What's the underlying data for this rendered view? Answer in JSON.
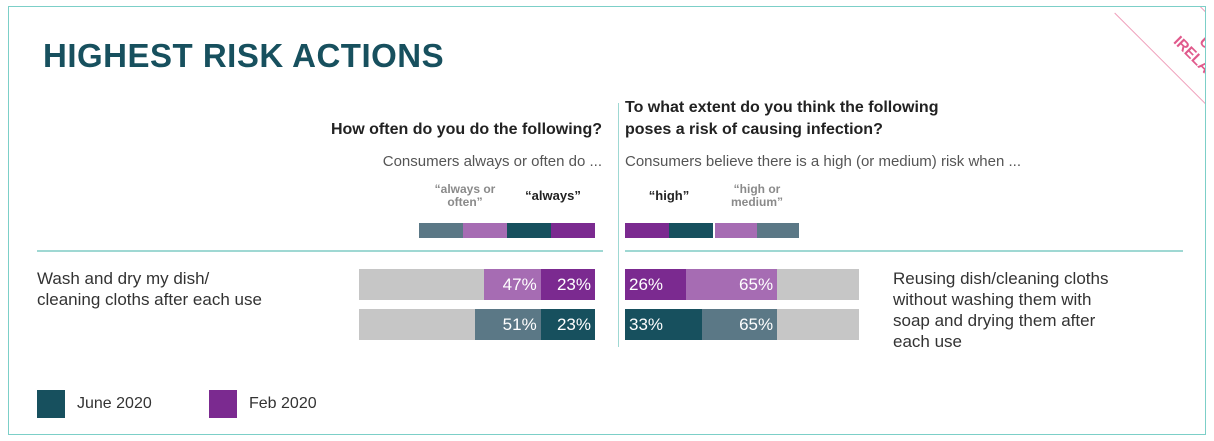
{
  "title": "HIGHEST RISK ACTIONS",
  "badge": {
    "line1": "UK /",
    "line2": "IRELAND"
  },
  "colors": {
    "title": "#17505e",
    "june2020_dark": "#17505e",
    "feb2020_dark": "#7b2a90",
    "june2020_light": "#5b7886",
    "feb2020_light": "#a66cb3",
    "bar_background": "#c6c6c6",
    "badge": "#e05a8c"
  },
  "left": {
    "question": "How often do you do the following?",
    "subtitle": "Consumers always or often do ...",
    "key_light": "“always or often”",
    "key_dark": "“always”"
  },
  "right": {
    "question_line1": "To what extent do you think the following",
    "question_line2": "poses a risk of causing infection?",
    "subtitle": "Consumers believe there is a high (or medium) risk when ...",
    "key_dark": "“high”",
    "key_light": "“high or medium”"
  },
  "chart_data": [
    {
      "type": "bar",
      "title": "How often do you do the following?",
      "subtitle": "Consumers always or often do ...",
      "category": "Wash and dry my dish/ cleaning cloths after each use",
      "series": [
        {
          "name": "Feb 2020",
          "always_or_often": 47,
          "always": 23
        },
        {
          "name": "June 2020",
          "always_or_often": 51,
          "always": 23
        }
      ],
      "ylim": [
        0,
        100
      ],
      "label_line1": "Wash and dry my dish/",
      "label_line2": "cleaning cloths after each use",
      "labels": {
        "feb_light": "47%",
        "feb_dark": "23%",
        "june_light": "51%",
        "june_dark": "23%"
      }
    },
    {
      "type": "bar",
      "title": "To what extent do you think the following poses a risk of causing infection?",
      "subtitle": "Consumers believe there is a high (or medium) risk when ...",
      "category": "Reusing dish/cleaning cloths without washing them with soap and drying them after each use",
      "series": [
        {
          "name": "Feb 2020",
          "high": 26,
          "high_or_medium": 65
        },
        {
          "name": "June 2020",
          "high": 33,
          "high_or_medium": 65
        }
      ],
      "ylim": [
        0,
        100
      ],
      "label_lines": [
        "Reusing dish/cleaning cloths",
        "without washing them with",
        "soap and drying them after",
        "each use"
      ],
      "labels": {
        "feb_dark": "26%",
        "feb_light": "65%",
        "june_dark": "33%",
        "june_light": "65%"
      }
    }
  ],
  "legend": [
    {
      "label": "June 2020",
      "color": "#17505e"
    },
    {
      "label": "Feb 2020",
      "color": "#7b2a90"
    }
  ]
}
